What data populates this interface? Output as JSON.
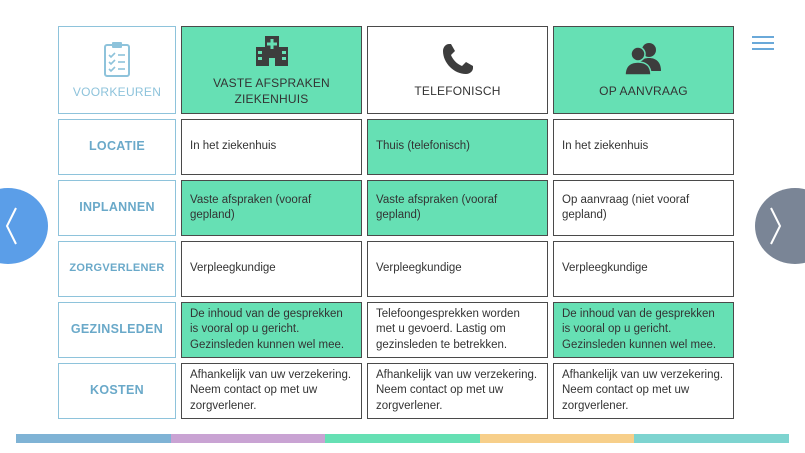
{
  "header": {
    "corner_label": "VOORKEUREN",
    "columns": [
      {
        "label": "VASTE AFSPRAKEN ZIEKENHUIS",
        "icon": "hospital-icon"
      },
      {
        "label": "TELEFONISCH",
        "icon": "phone-icon"
      },
      {
        "label": "OP AANVRAAG",
        "icon": "people-icon"
      }
    ]
  },
  "rows": [
    {
      "label": "LOCATIE",
      "cells": [
        "In het ziekenhuis",
        "Thuis (telefonisch)",
        "In het ziekenhuis"
      ]
    },
    {
      "label": "INPLANNEN",
      "cells": [
        "Vaste afspraken (vooraf gepland)",
        "Vaste afspraken (vooraf gepland)",
        "Op aanvraag (niet vooraf gepland)"
      ]
    },
    {
      "label": "ZORGVERLENER",
      "cells": [
        "Verpleegkundige",
        "Verpleegkundige",
        "Verpleegkundige"
      ]
    },
    {
      "label": "GEZINSLEDEN",
      "cells": [
        "De inhoud van de gesprekken is vooral op u gericht. Gezinsleden kunnen wel mee.",
        "Telefoongesprekken worden met u gevoerd. Lastig om gezinsleden te betrekken.",
        "De inhoud van de gesprekken is vooral op u gericht. Gezinsleden kunnen wel mee."
      ]
    },
    {
      "label": "KOSTEN",
      "cells": [
        "Afhankelijk van uw verzekering. Neem contact op met uw zorgverlener.",
        "Afhankelijk van uw verzekering. Neem contact op met uw zorgverlener.",
        "Afhankelijk van uw verzekering. Neem contact op met uw zorgverlener."
      ]
    }
  ],
  "colors": {
    "highlight": "#66e0b4",
    "label_blue": "#6aa9c9",
    "nav_left": "#5b9ee8",
    "nav_right": "#7a8596"
  },
  "navigation": {
    "prev_icon": "chevron-left-icon",
    "next_icon": "chevron-right-icon",
    "menu_icon": "hamburger-menu-icon"
  },
  "progress_bar_colors": [
    "#7fb3d5",
    "#c9a3d3",
    "#66e0b4",
    "#f7cf8a",
    "#7ed4d0"
  ]
}
